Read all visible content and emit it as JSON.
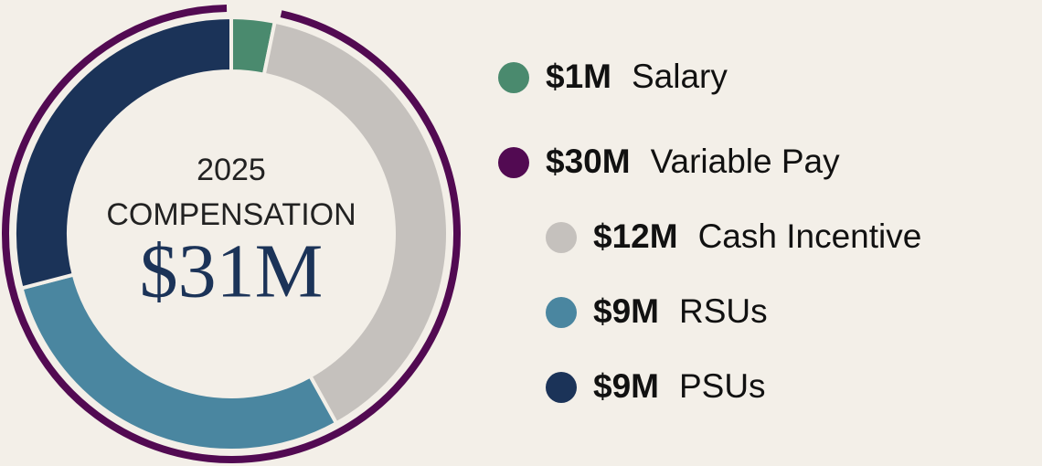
{
  "chart_data": {
    "type": "donut",
    "title": "2025",
    "subtitle": "COMPENSATION",
    "total": {
      "value": 31,
      "label": "$31M"
    },
    "categories": [
      "Salary",
      "Variable Pay"
    ],
    "values": [
      1,
      30
    ],
    "value_labels": [
      "$1M",
      "$30M"
    ],
    "colors": [
      "#4a8a6e",
      "#520a52"
    ],
    "components": {
      "categories": [
        "Cash Incentive",
        "RSUs",
        "PSUs"
      ],
      "values": [
        12,
        9,
        9
      ],
      "value_labels": [
        "$12M",
        "$9M",
        "$9M"
      ],
      "colors": [
        "#c5c1bd",
        "#4a86a0",
        "#1b3358"
      ]
    }
  }
}
